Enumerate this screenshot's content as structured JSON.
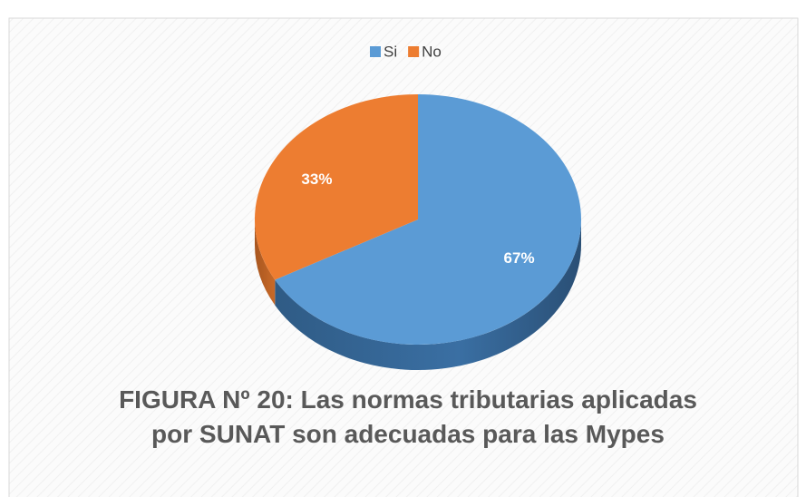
{
  "chart_data": {
    "type": "pie",
    "title": "FIGURA Nº 20: Las normas tributarias aplicadas por SUNAT son adecuadas para las Mypes",
    "categories": [
      "Si",
      "No"
    ],
    "values": [
      67,
      33
    ],
    "value_labels": [
      "67%",
      "33%"
    ],
    "colors": [
      "#5b9bd5",
      "#ed7d31"
    ],
    "legend": "top"
  }
}
